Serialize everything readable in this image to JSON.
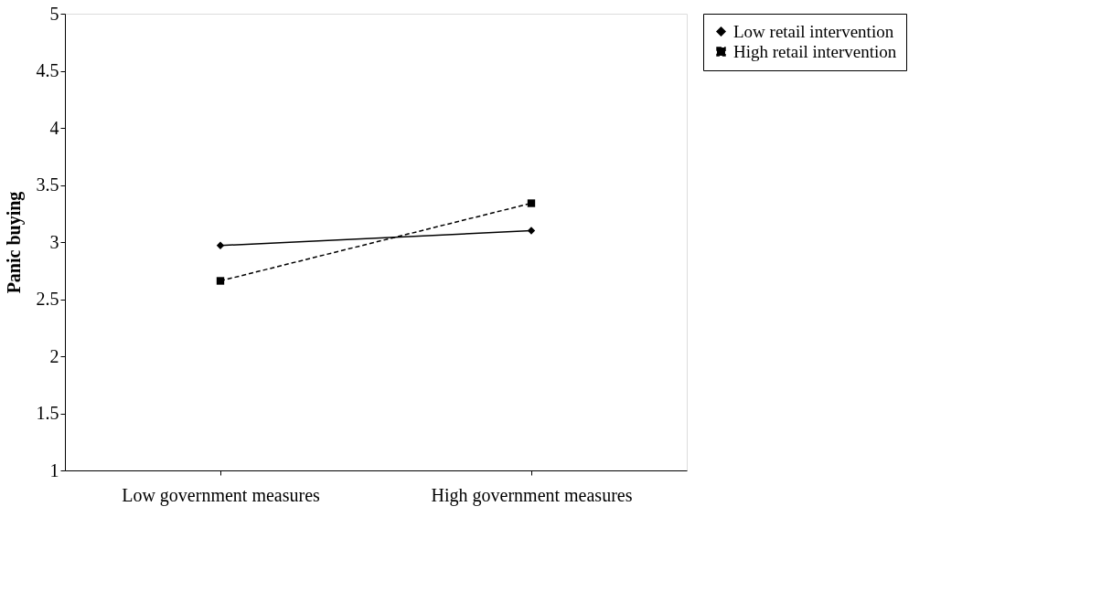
{
  "chart_data": {
    "type": "line",
    "ylabel": "Panic buying",
    "categories": [
      "Low government measures",
      "High government measures"
    ],
    "series": [
      {
        "name": "Low retail intervention",
        "color": "#000000",
        "values": [
          2.97,
          3.1
        ],
        "marker": "diamond",
        "line_style": "solid"
      },
      {
        "name": "High retail intervention",
        "color": "#000000",
        "values": [
          2.66,
          3.34
        ],
        "marker": "square",
        "line_style": "dashed"
      }
    ],
    "ylim": [
      1,
      5
    ],
    "yticks": [
      1,
      1.5,
      2,
      2.5,
      3,
      3.5,
      4,
      4.5,
      5
    ],
    "grid": false,
    "legend": "right"
  }
}
